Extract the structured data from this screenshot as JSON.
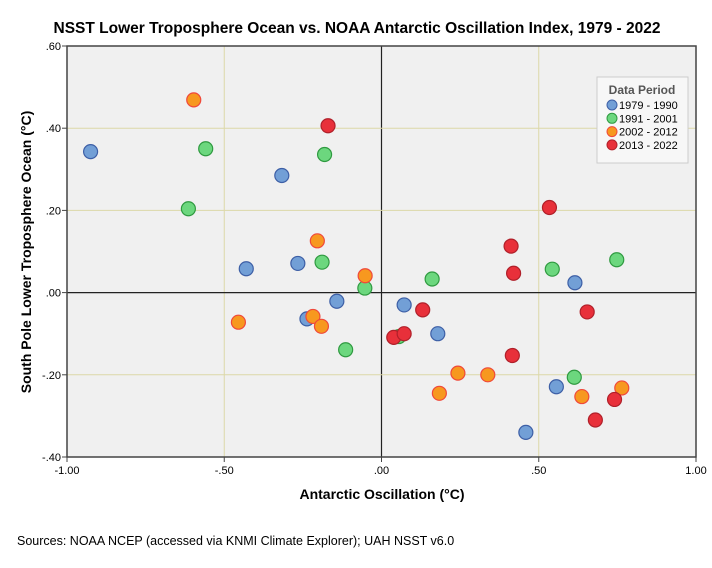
{
  "chart_data": {
    "type": "scatter",
    "title": "NSST Lower Troposphere Ocean vs. NOAA Antarctic Oscillation Index, 1979 - 2022",
    "xlabel": "Antarctic Oscillation (°C)",
    "ylabel": "South Pole Lower Troposphere Ocean (°C)",
    "xlim": [
      -1.0,
      1.0
    ],
    "ylim": [
      -0.4,
      0.6
    ],
    "xticks": [
      -1.0,
      -0.5,
      0.0,
      0.5,
      1.0
    ],
    "xtick_labels": [
      "-1.00",
      "-.50",
      ".00",
      ".50",
      "1.00"
    ],
    "yticks": [
      -0.4,
      -0.2,
      0.0,
      0.2,
      0.4,
      0.6
    ],
    "ytick_labels": [
      "-.40",
      "-.20",
      ".00",
      ".20",
      ".40",
      ".60"
    ],
    "grid": true,
    "legend": {
      "title": "Data Period",
      "placement": "top-right"
    },
    "series": [
      {
        "name": "1979 - 1990",
        "color": "#729fd6",
        "edge": "#3d5fa6",
        "points": [
          [
            -0.925,
            0.343
          ],
          [
            -0.317,
            0.285
          ],
          [
            -0.43,
            0.058
          ],
          [
            -0.266,
            0.071
          ],
          [
            -0.142,
            -0.021
          ],
          [
            -0.237,
            -0.064
          ],
          [
            0.072,
            -0.03
          ],
          [
            0.179,
            -0.1
          ],
          [
            0.615,
            0.024
          ],
          [
            0.556,
            -0.229
          ],
          [
            0.459,
            -0.34
          ]
        ]
      },
      {
        "name": "1991 - 2001",
        "color": "#6cd77e",
        "edge": "#2f9a40",
        "points": [
          [
            -0.559,
            0.35
          ],
          [
            -0.614,
            0.204
          ],
          [
            -0.181,
            0.336
          ],
          [
            -0.189,
            0.074
          ],
          [
            -0.053,
            0.011
          ],
          [
            -0.114,
            -0.139
          ],
          [
            0.055,
            -0.107
          ],
          [
            0.161,
            0.033
          ],
          [
            0.543,
            0.057
          ],
          [
            0.748,
            0.08
          ],
          [
            0.613,
            -0.206
          ]
        ]
      },
      {
        "name": "2002 - 2012",
        "color": "#f7981f",
        "edge": "#f0483a",
        "points": [
          [
            -0.597,
            0.469
          ],
          [
            -0.204,
            0.126
          ],
          [
            -0.052,
            0.041
          ],
          [
            -0.455,
            -0.072
          ],
          [
            -0.218,
            -0.058
          ],
          [
            -0.191,
            -0.082
          ],
          [
            0.243,
            -0.196
          ],
          [
            0.338,
            -0.2
          ],
          [
            0.184,
            -0.245
          ],
          [
            0.764,
            -0.232
          ],
          [
            0.637,
            -0.253
          ]
        ]
      },
      {
        "name": "2013 - 2022",
        "color": "#e8303a",
        "edge": "#b0202a",
        "points": [
          [
            -0.17,
            0.406
          ],
          [
            0.534,
            0.207
          ],
          [
            0.412,
            0.113
          ],
          [
            0.42,
            0.047
          ],
          [
            0.131,
            -0.042
          ],
          [
            0.039,
            -0.109
          ],
          [
            0.072,
            -0.1
          ],
          [
            0.654,
            -0.047
          ],
          [
            0.416,
            -0.153
          ],
          [
            0.741,
            -0.26
          ],
          [
            0.68,
            -0.31
          ]
        ]
      }
    ]
  },
  "sources": "Sources: NOAA NCEP (accessed via KNMI Climate Explorer); UAH NSST v6.0"
}
